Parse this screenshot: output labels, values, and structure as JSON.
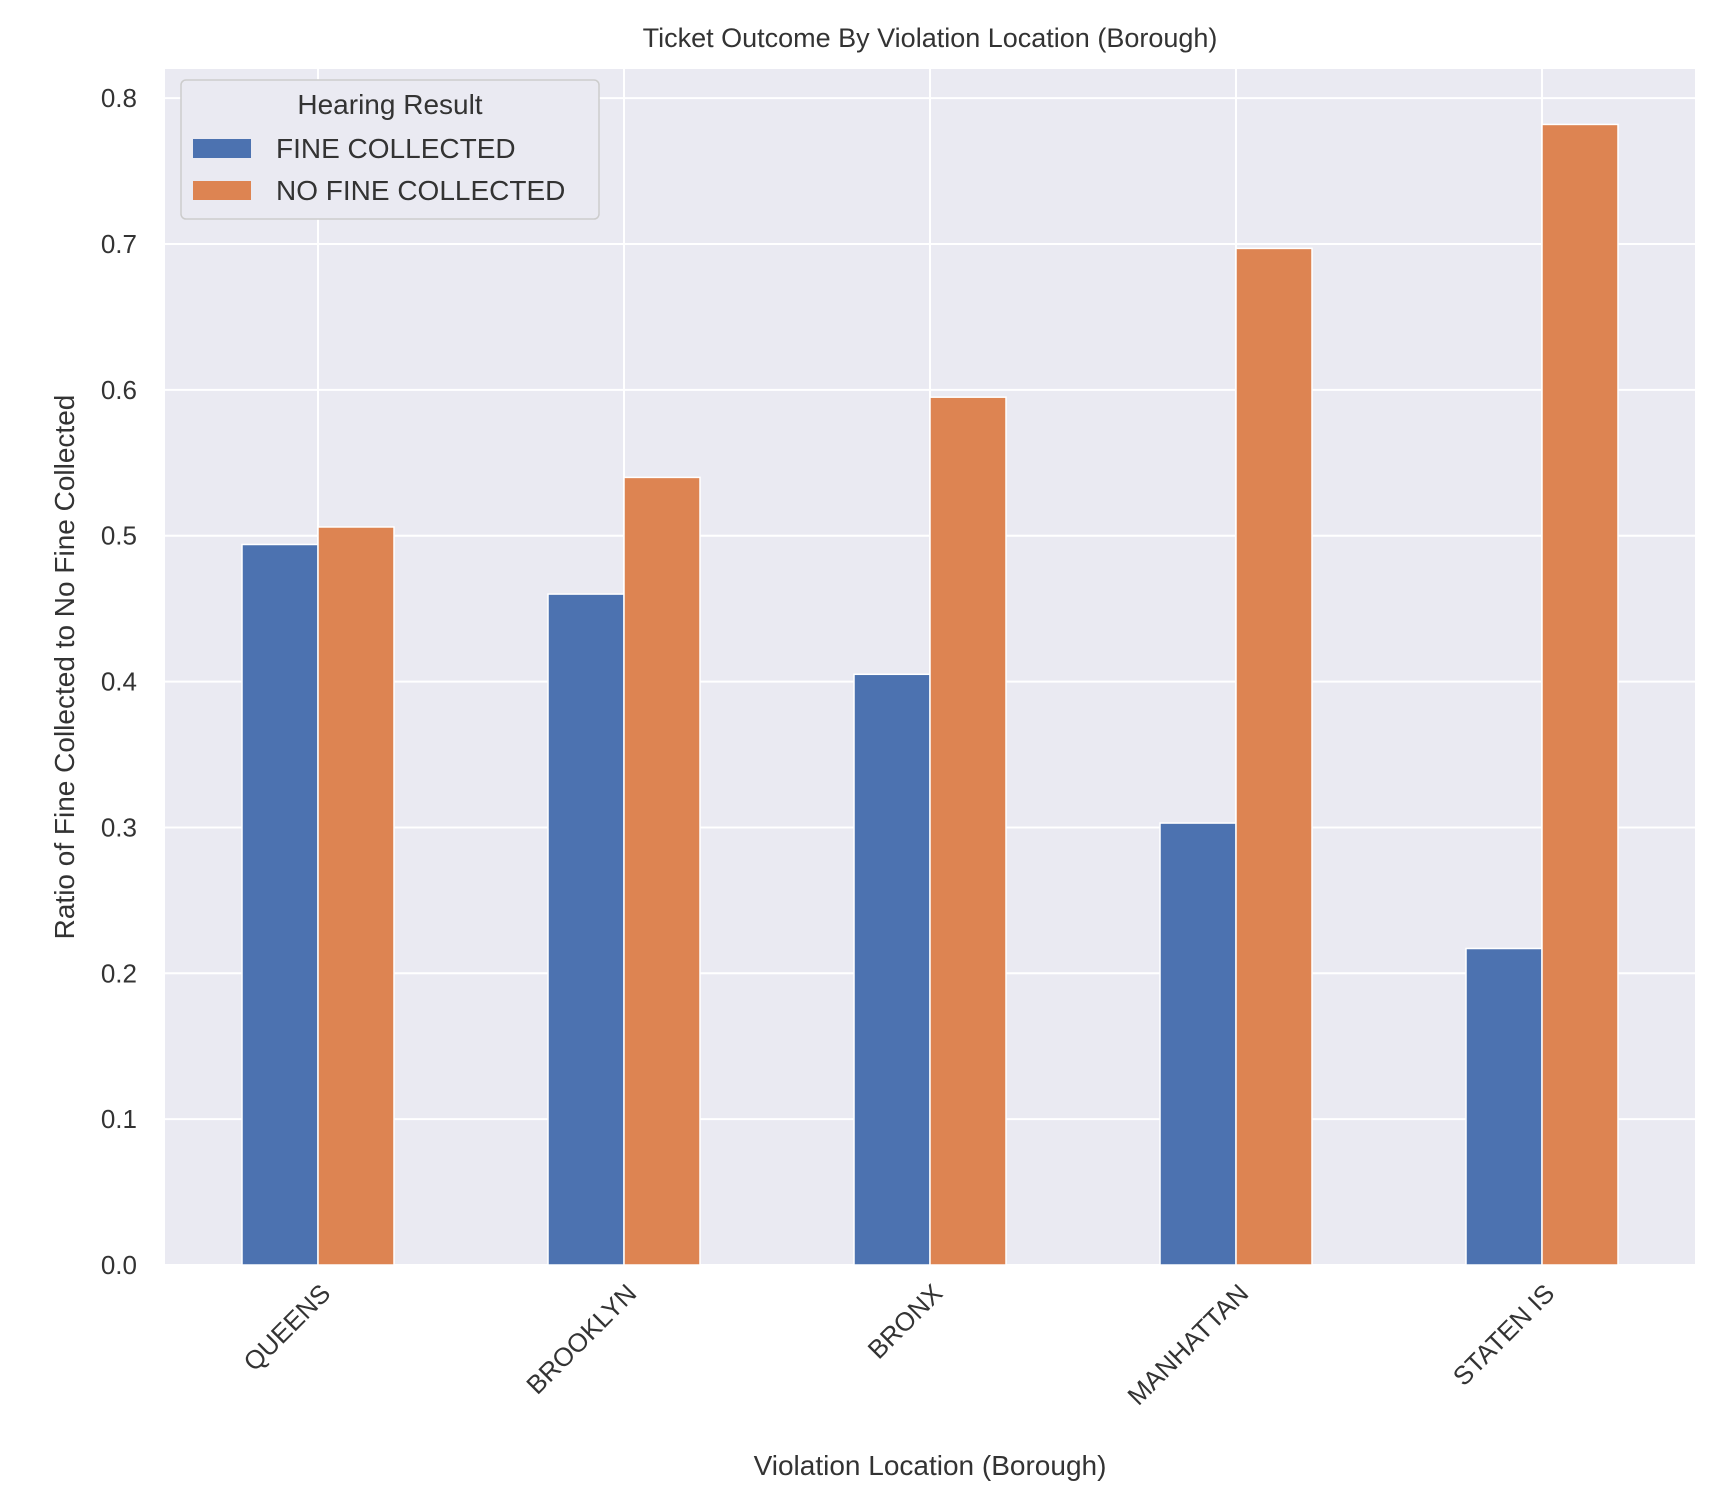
{
  "chart_data": {
    "type": "bar",
    "title": "Ticket Outcome By Violation Location (Borough)",
    "xlabel": "Violation Location (Borough)",
    "ylabel": "Ratio of Fine Collected to No Fine Collected",
    "categories": [
      "QUEENS",
      "BROOKLYN",
      "BRONX",
      "MANHATTAN",
      "STATEN IS"
    ],
    "series": [
      {
        "name": "FINE COLLECTED",
        "color": "#4c72b0",
        "values": [
          0.494,
          0.46,
          0.405,
          0.303,
          0.217
        ]
      },
      {
        "name": "NO FINE COLLECTED",
        "color": "#dd8452",
        "values": [
          0.506,
          0.54,
          0.595,
          0.697,
          0.782
        ]
      }
    ],
    "ylim": [
      0,
      0.82
    ],
    "yticks": [
      0.0,
      0.1,
      0.2,
      0.3,
      0.4,
      0.5,
      0.6,
      0.7,
      0.8
    ],
    "ytick_labels": [
      "0.0",
      "0.1",
      "0.2",
      "0.3",
      "0.4",
      "0.5",
      "0.6",
      "0.7",
      "0.8"
    ],
    "legend": {
      "title": "Hearing Result",
      "position": "top-left"
    },
    "grid": true,
    "background_color": "#eaeaf2",
    "grid_color": "#ffffff"
  }
}
